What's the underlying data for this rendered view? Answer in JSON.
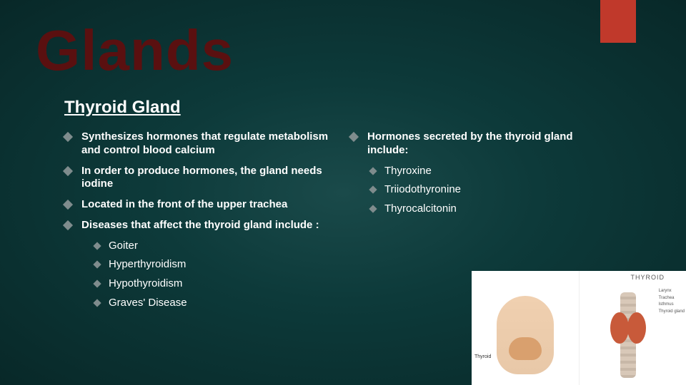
{
  "title": "Glands",
  "subtitle": "Thyroid Gland",
  "colors": {
    "accent": "#c0392b",
    "title_color": "#5a1010",
    "text": "#ffffff",
    "bullet": "#7f8c8d"
  },
  "left_bullets": [
    "Synthesizes hormones that regulate metabolism and control blood calcium",
    "In order to produce hormones, the gland needs iodine",
    "Located in the front of the upper trachea",
    "Diseases that affect the thyroid gland include :"
  ],
  "left_sub_bullets": [
    "Goiter",
    "Hyperthyroidism",
    "Hypothyroidism",
    "Graves' Disease"
  ],
  "right_bullets": [
    "Hormones secreted by the thyroid gland include:"
  ],
  "right_sub_bullets": [
    "Thyroxine",
    "Triiodothyronine",
    "Thyrocalcitonin"
  ],
  "image": {
    "title": "THYROID",
    "left_label": "Thyroid",
    "right_labels": [
      "Larynx",
      "Trachea",
      "Isthmus",
      "Thyroid gland"
    ]
  }
}
